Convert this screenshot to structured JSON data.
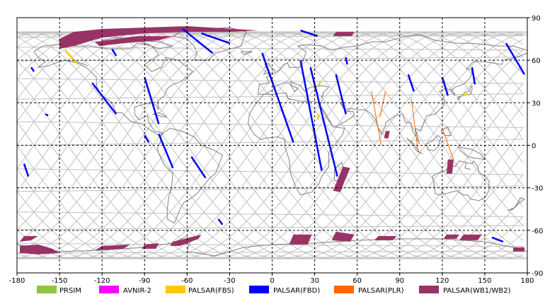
{
  "map": {
    "x_ticks": [
      "-180",
      "-150",
      "-120",
      "-90",
      "-60",
      "-30",
      "0",
      "30",
      "60",
      "90",
      "120",
      "150",
      "180"
    ],
    "y_ticks": [
      "90",
      "60",
      "30",
      "0",
      "-30",
      "-60",
      "-90"
    ],
    "lon_range": [
      -180,
      180
    ],
    "lat_range": [
      -90,
      90
    ],
    "grid": true,
    "colors": {
      "coast": "#808080",
      "track": "#c0c0c0",
      "grid": "#000000",
      "frame": "#000000"
    }
  },
  "legend": [
    {
      "label": "PRSIM",
      "color": "#8dc63f"
    },
    {
      "label": "AVNIR-2",
      "color": "#ff00ff"
    },
    {
      "label": "PALSAR(FBS)",
      "color": "#ffc800"
    },
    {
      "label": "PALSAR(FBD)",
      "color": "#0000ff"
    },
    {
      "label": "PALSAR(PLR)",
      "color": "#ff6600"
    },
    {
      "label": "PALSAR(WB1/WB2)",
      "color": "#993366"
    }
  ],
  "observations": {
    "wide": [
      [
        [
          -150,
          75
        ],
        [
          -140,
          80
        ],
        [
          -120,
          82
        ],
        [
          -90,
          83
        ],
        [
          -60,
          84
        ],
        [
          -10,
          81
        ],
        [
          -30,
          80
        ],
        [
          -60,
          80
        ],
        [
          -90,
          79
        ],
        [
          -120,
          76
        ],
        [
          -140,
          70
        ],
        [
          -150,
          68
        ]
      ],
      [
        [
          -125,
          73
        ],
        [
          -95,
          77
        ],
        [
          -70,
          77
        ],
        [
          -80,
          74
        ],
        [
          -105,
          72
        ],
        [
          -122,
          70
        ]
      ],
      [
        [
          45,
          80
        ],
        [
          58,
          80
        ],
        [
          56,
          77
        ],
        [
          43,
          77
        ]
      ],
      [
        [
          -175,
          -64
        ],
        [
          -165,
          -64
        ],
        [
          -170,
          -67
        ],
        [
          -178,
          -68
        ]
      ],
      [
        [
          -178,
          -71
        ],
        [
          -165,
          -70
        ],
        [
          -155,
          -73
        ],
        [
          -150,
          -76
        ],
        [
          -165,
          -77
        ],
        [
          -178,
          -76
        ]
      ],
      [
        [
          -120,
          -71
        ],
        [
          -100,
          -70
        ],
        [
          -105,
          -73
        ],
        [
          -125,
          -74
        ]
      ],
      [
        [
          -90,
          -70
        ],
        [
          -80,
          -69
        ],
        [
          -82,
          -73
        ],
        [
          -92,
          -73
        ]
      ],
      [
        [
          -70,
          -68
        ],
        [
          -50,
          -63
        ],
        [
          -52,
          -66
        ],
        [
          -65,
          -71
        ],
        [
          -72,
          -71
        ]
      ],
      [
        [
          15,
          -63
        ],
        [
          28,
          -63
        ],
        [
          25,
          -70
        ],
        [
          12,
          -70
        ]
      ],
      [
        [
          45,
          -61
        ],
        [
          58,
          -63
        ],
        [
          55,
          -68
        ],
        [
          42,
          -67
        ]
      ],
      [
        [
          75,
          -64
        ],
        [
          88,
          -64
        ],
        [
          85,
          -67
        ],
        [
          72,
          -67
        ]
      ],
      [
        [
          123,
          -63
        ],
        [
          132,
          -63
        ],
        [
          130,
          -66
        ],
        [
          121,
          -66
        ]
      ],
      [
        [
          135,
          -63
        ],
        [
          148,
          -63
        ],
        [
          145,
          -67
        ],
        [
          132,
          -67
        ]
      ],
      [
        [
          170,
          -72
        ],
        [
          178,
          -72
        ],
        [
          178,
          -75
        ],
        [
          170,
          -75
        ]
      ],
      [
        [
          50,
          -15
        ],
        [
          55,
          -16
        ],
        [
          48,
          -33
        ],
        [
          43,
          -32
        ]
      ],
      [
        [
          80,
          10
        ],
        [
          83,
          10
        ],
        [
          82,
          5
        ],
        [
          79,
          5
        ]
      ],
      [
        [
          124,
          -10
        ],
        [
          128,
          -10
        ],
        [
          127,
          -20
        ],
        [
          123,
          -20
        ]
      ]
    ],
    "fbd": [
      [
        [
          -50,
          79
        ],
        [
          -30,
          72
        ]
      ],
      [
        [
          -63,
          82
        ],
        [
          -42,
          65
        ]
      ],
      [
        [
          20,
          81
        ],
        [
          32,
          77
        ]
      ],
      [
        [
          -7,
          65
        ],
        [
          15,
          2
        ]
      ],
      [
        [
          20,
          60
        ],
        [
          35,
          -18
        ]
      ],
      [
        [
          27,
          55
        ],
        [
          46,
          -22
        ]
      ],
      [
        [
          45,
          50
        ],
        [
          52,
          22
        ]
      ],
      [
        [
          52,
          62
        ],
        [
          53,
          57
        ]
      ],
      [
        [
          -127,
          44
        ],
        [
          -110,
          22
        ]
      ],
      [
        [
          -90,
          48
        ],
        [
          -80,
          15
        ]
      ],
      [
        [
          -113,
          68
        ],
        [
          -110,
          63
        ]
      ],
      [
        [
          -170,
          55
        ],
        [
          -168,
          52
        ]
      ],
      [
        [
          -160,
          22
        ],
        [
          -158,
          21
        ]
      ],
      [
        [
          -175,
          -13
        ],
        [
          -172,
          -22
        ]
      ],
      [
        [
          -80,
          8
        ],
        [
          -70,
          -16
        ]
      ],
      [
        [
          -57,
          -8
        ],
        [
          -47,
          -23
        ]
      ],
      [
        [
          -38,
          -52
        ],
        [
          -35,
          -56
        ]
      ],
      [
        [
          165,
          72
        ],
        [
          178,
          50
        ]
      ],
      [
        [
          141,
          55
        ],
        [
          143,
          43
        ]
      ],
      [
        [
          96,
          50
        ],
        [
          100,
          38
        ]
      ],
      [
        [
          120,
          48
        ],
        [
          124,
          35
        ]
      ],
      [
        [
          155,
          -65
        ],
        [
          163,
          -68
        ]
      ],
      [
        [
          -90,
          7
        ],
        [
          -87,
          2
        ]
      ]
    ],
    "fbs": [
      [
        [
          -146,
          67
        ],
        [
          -137,
          57
        ]
      ],
      [
        [
          34,
          45
        ],
        [
          33,
          42
        ]
      ],
      [
        [
          33,
          22
        ],
        [
          32,
          18
        ]
      ],
      [
        [
          133,
          35
        ],
        [
          138,
          36
        ]
      ]
    ],
    "plr": [
      [
        [
          70,
          38
        ],
        [
          77,
          0
        ]
      ],
      [
        [
          98,
          34
        ],
        [
          103,
          -5
        ]
      ],
      [
        [
          120,
          12
        ],
        [
          128,
          -10
        ]
      ],
      [
        [
          80,
          38
        ],
        [
          76,
          20
        ]
      ]
    ]
  }
}
